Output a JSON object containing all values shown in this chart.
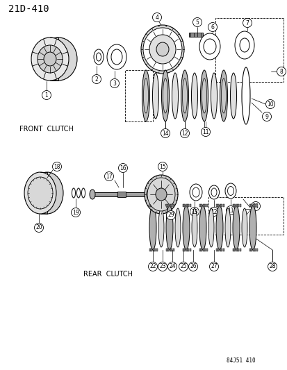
{
  "title": "21D-410",
  "bg_color": "#ffffff",
  "fig_width": 4.14,
  "fig_height": 5.33,
  "dpi": 100,
  "front_clutch_label": "FRONT  CLUTCH",
  "rear_clutch_label": "REAR  CLUTCH",
  "watermark": "84J51 410"
}
